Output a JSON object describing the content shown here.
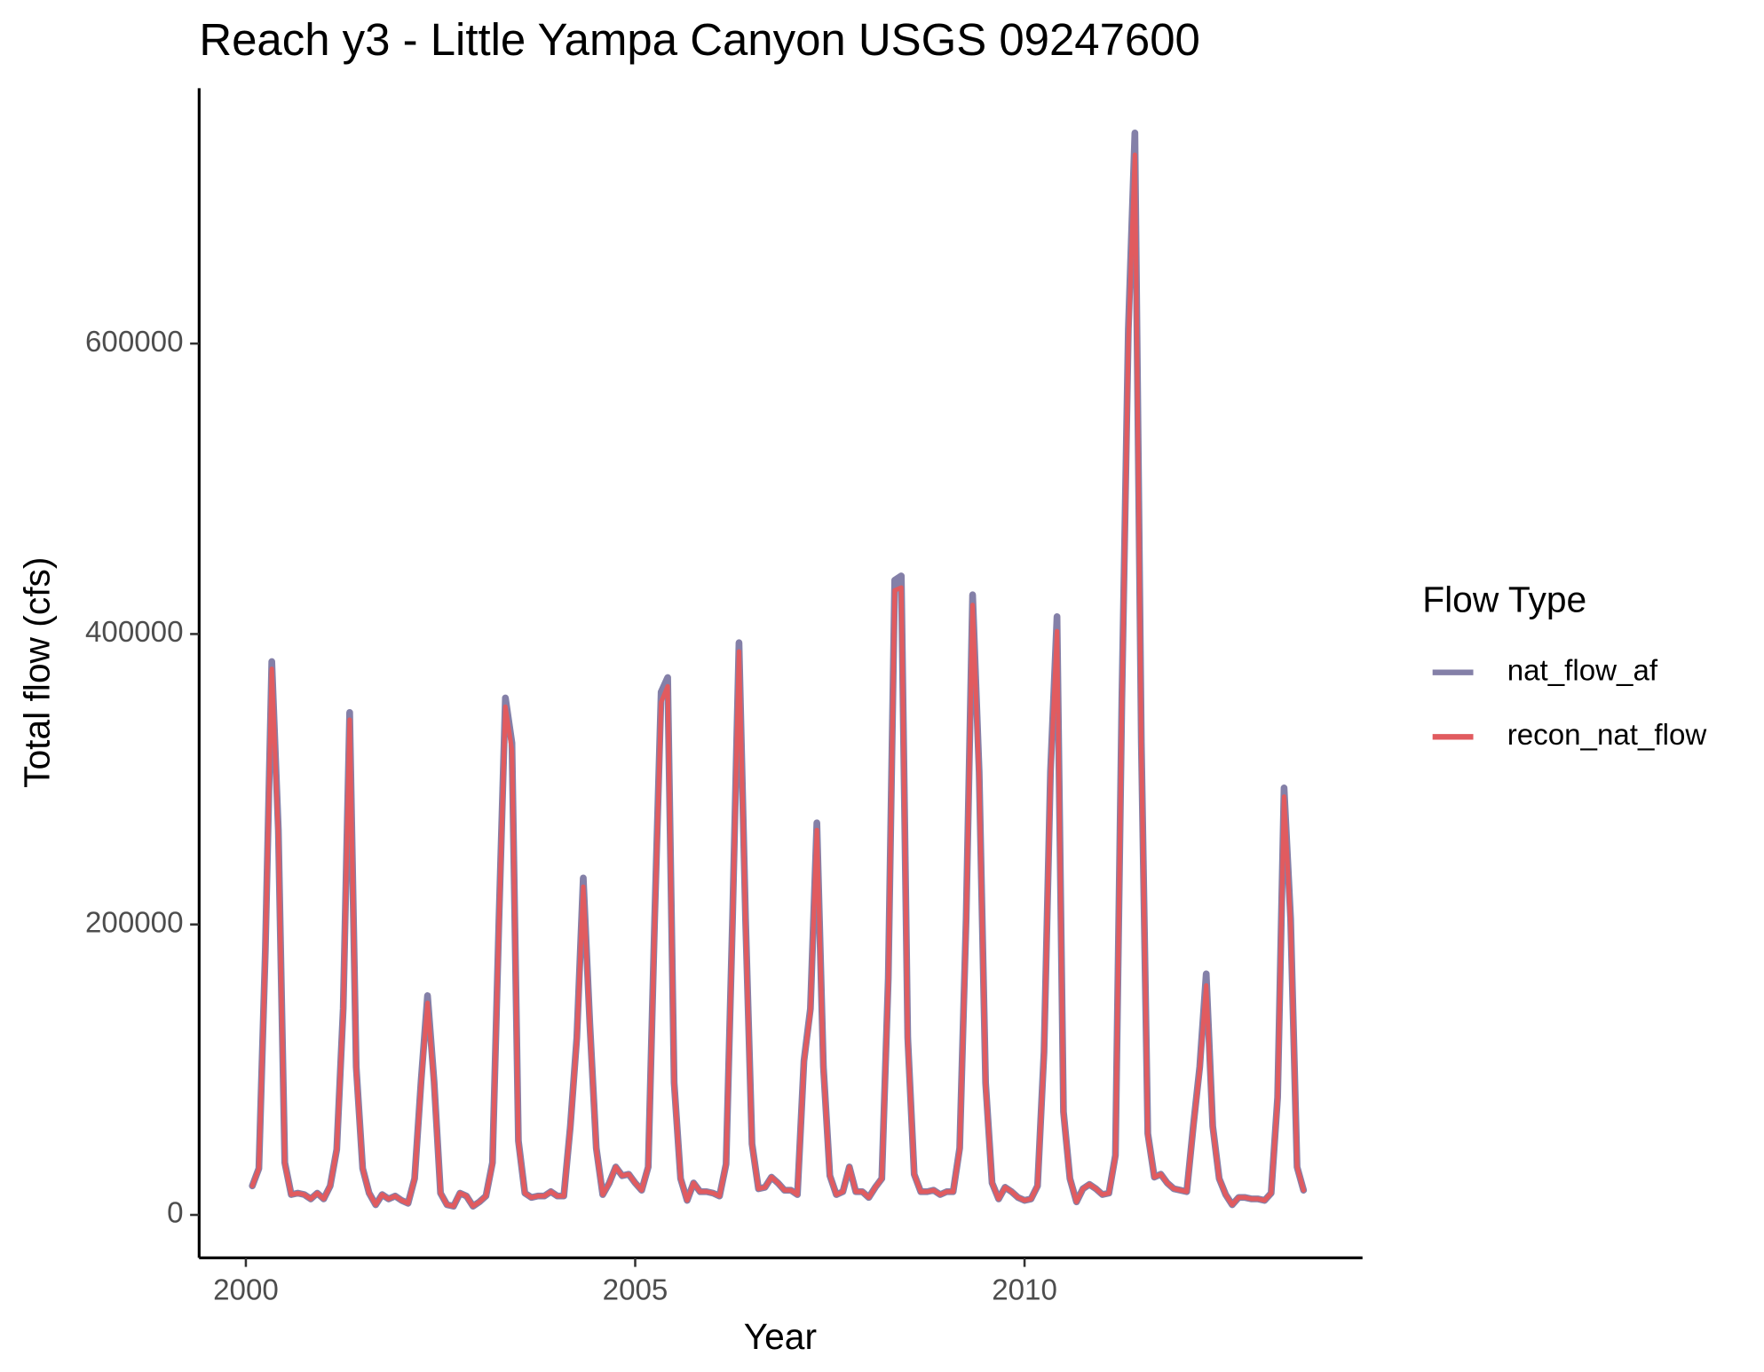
{
  "chart_data": {
    "type": "line",
    "title": "Reach y3 - Little Yampa Canyon USGS 09247600",
    "x_label": "Year",
    "y_label": "Total flow (cfs)",
    "legend_title": "Flow Type",
    "legend_position": "right",
    "xlim": [
      1999.4,
      2014.34
    ],
    "ylim": [
      -29572,
      775875
    ],
    "xticks": [
      2000,
      2005,
      2010
    ],
    "yticks": [
      0,
      200000,
      400000,
      600000
    ],
    "grid": false,
    "x": [
      2000.083,
      2000.167,
      2000.25,
      2000.333,
      2000.417,
      2000.5,
      2000.583,
      2000.667,
      2000.75,
      2000.833,
      2000.917,
      2001.0,
      2001.083,
      2001.167,
      2001.25,
      2001.333,
      2001.417,
      2001.5,
      2001.583,
      2001.667,
      2001.75,
      2001.833,
      2001.917,
      2002.0,
      2002.083,
      2002.167,
      2002.25,
      2002.333,
      2002.417,
      2002.5,
      2002.583,
      2002.667,
      2002.75,
      2002.833,
      2002.917,
      2003.0,
      2003.083,
      2003.167,
      2003.25,
      2003.333,
      2003.417,
      2003.5,
      2003.583,
      2003.667,
      2003.75,
      2003.833,
      2003.917,
      2004.0,
      2004.083,
      2004.167,
      2004.25,
      2004.333,
      2004.417,
      2004.5,
      2004.583,
      2004.667,
      2004.75,
      2004.833,
      2004.917,
      2005.0,
      2005.083,
      2005.167,
      2005.25,
      2005.333,
      2005.417,
      2005.5,
      2005.583,
      2005.667,
      2005.75,
      2005.833,
      2005.917,
      2006.0,
      2006.083,
      2006.167,
      2006.25,
      2006.333,
      2006.417,
      2006.5,
      2006.583,
      2006.667,
      2006.75,
      2006.833,
      2006.917,
      2007.0,
      2007.083,
      2007.167,
      2007.25,
      2007.333,
      2007.417,
      2007.5,
      2007.583,
      2007.667,
      2007.75,
      2007.833,
      2007.917,
      2008.0,
      2008.083,
      2008.167,
      2008.25,
      2008.333,
      2008.417,
      2008.5,
      2008.583,
      2008.667,
      2008.75,
      2008.833,
      2008.917,
      2009.0,
      2009.083,
      2009.167,
      2009.25,
      2009.333,
      2009.417,
      2009.5,
      2009.583,
      2009.667,
      2009.75,
      2009.833,
      2009.917,
      2010.0,
      2010.083,
      2010.167,
      2010.25,
      2010.333,
      2010.417,
      2010.5,
      2010.583,
      2010.667,
      2010.75,
      2010.833,
      2010.917,
      2011.0,
      2011.083,
      2011.167,
      2011.25,
      2011.333,
      2011.417,
      2011.5,
      2011.583,
      2011.667,
      2011.75,
      2011.833,
      2011.917,
      2012.0,
      2012.083,
      2012.167,
      2012.25,
      2012.333,
      2012.417,
      2012.5,
      2012.583,
      2012.667,
      2012.75,
      2012.833,
      2012.917,
      2013.0,
      2013.083,
      2013.167,
      2013.25,
      2013.333,
      2013.417,
      2013.5,
      2013.583
    ],
    "series": [
      {
        "name": "nat_flow_af",
        "color": "#8480a8",
        "values": [
          20000,
          32000,
          182000,
          381000,
          265000,
          36000,
          14000,
          15000,
          14000,
          11000,
          15000,
          11000,
          20000,
          45000,
          142000,
          346000,
          102000,
          32000,
          15000,
          7000,
          14000,
          11000,
          13000,
          10000,
          8000,
          25000,
          92000,
          151000,
          92000,
          15000,
          7000,
          6000,
          15000,
          13000,
          6000,
          9000,
          13000,
          36000,
          203000,
          356000,
          325000,
          51000,
          15000,
          12000,
          13000,
          13000,
          16000,
          13000,
          13000,
          61000,
          122000,
          232000,
          132000,
          46000,
          14000,
          22000,
          33000,
          27000,
          28000,
          22000,
          17000,
          33000,
          204000,
          360000,
          370000,
          91000,
          25000,
          10000,
          22000,
          16000,
          16000,
          15000,
          13000,
          35000,
          204000,
          394000,
          204000,
          49000,
          18000,
          19000,
          26000,
          22000,
          17000,
          17000,
          14000,
          106000,
          142000,
          270000,
          102000,
          27000,
          14000,
          16000,
          33000,
          16000,
          16000,
          12000,
          19000,
          25000,
          163000,
          437000,
          440000,
          122000,
          28000,
          16000,
          16000,
          17000,
          14000,
          16000,
          16000,
          46000,
          204000,
          427000,
          305000,
          91000,
          22000,
          11000,
          19000,
          16000,
          12000,
          10000,
          11000,
          20000,
          112000,
          305000,
          412000,
          71000,
          25000,
          9000,
          18000,
          21000,
          18000,
          14000,
          15000,
          41000,
          355000,
          610000,
          745000,
          325000,
          56000,
          26000,
          28000,
          22000,
          18000,
          17000,
          16000,
          61000,
          102000,
          166000,
          61000,
          25000,
          14000,
          7000,
          12000,
          12000,
          11000,
          11000,
          10000,
          15000,
          81000,
          294000,
          204000,
          33000,
          17000
        ]
      },
      {
        "name": "recon_nat_flow",
        "color": "#e15b5f",
        "values": [
          20000,
          32000,
          180000,
          376000,
          260000,
          35000,
          14000,
          15000,
          14000,
          11000,
          15000,
          11000,
          20000,
          45000,
          140000,
          341000,
          100000,
          32000,
          15000,
          7000,
          14000,
          11000,
          13000,
          10000,
          8000,
          25000,
          90000,
          146000,
          90000,
          15000,
          7000,
          6000,
          15000,
          13000,
          6000,
          9000,
          13000,
          35000,
          200000,
          350000,
          320000,
          50000,
          15000,
          12000,
          13000,
          13000,
          16000,
          13000,
          13000,
          60000,
          120000,
          226000,
          130000,
          45000,
          14000,
          22000,
          33000,
          27000,
          28000,
          22000,
          17000,
          33000,
          200000,
          353000,
          364000,
          90000,
          25000,
          10000,
          22000,
          16000,
          16000,
          15000,
          13000,
          35000,
          200000,
          388000,
          200000,
          48000,
          18000,
          19000,
          26000,
          22000,
          17000,
          17000,
          14000,
          105000,
          140000,
          265000,
          100000,
          27000,
          14000,
          16000,
          33000,
          16000,
          16000,
          12000,
          19000,
          25000,
          160000,
          430000,
          432000,
          120000,
          28000,
          16000,
          16000,
          17000,
          14000,
          16000,
          16000,
          45000,
          200000,
          420000,
          300000,
          90000,
          22000,
          11000,
          19000,
          16000,
          12000,
          10000,
          11000,
          20000,
          110000,
          300000,
          402000,
          70000,
          25000,
          9000,
          18000,
          21000,
          18000,
          14000,
          15000,
          40000,
          350000,
          600000,
          730000,
          320000,
          55000,
          26000,
          28000,
          22000,
          18000,
          17000,
          16000,
          60000,
          100000,
          158000,
          60000,
          25000,
          14000,
          7000,
          12000,
          12000,
          11000,
          11000,
          10000,
          15000,
          80000,
          288000,
          200000,
          33000,
          17000
        ]
      }
    ]
  }
}
